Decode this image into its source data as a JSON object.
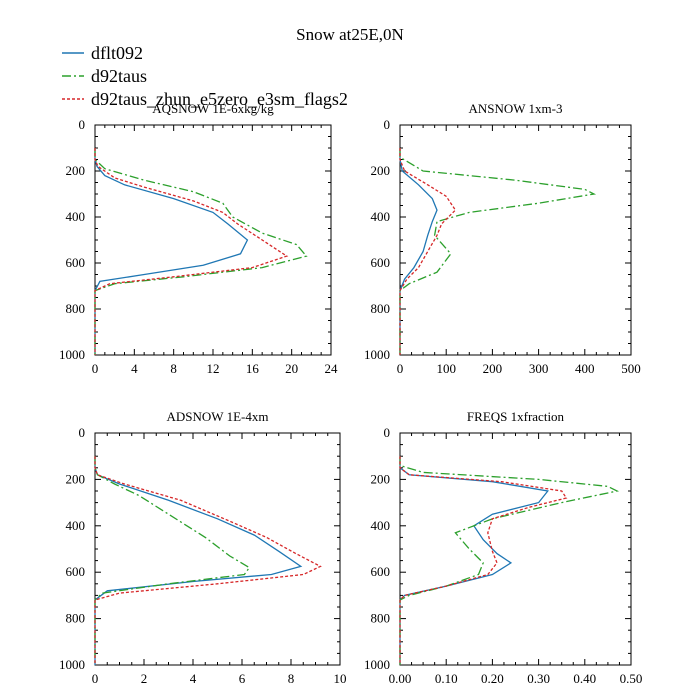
{
  "title": "Snow at25E,0N",
  "legend": [
    {
      "label": "dflt092",
      "color": "#1f77b4",
      "dash": "solid"
    },
    {
      "label": "d92taus",
      "color": "#2ca02c",
      "dash": "dashdot"
    },
    {
      "label": "d92taus_zhun_e5zero_e3sm_flags2",
      "color": "#d62728",
      "dash": "dotted"
    }
  ],
  "chart_data": [
    {
      "type": "line",
      "title": "AQSNOW  1E-6xkg/kg",
      "xlim": [
        0,
        24
      ],
      "xticks": [
        0,
        4,
        8,
        12,
        16,
        20,
        24
      ],
      "xtick_labels": [
        "0",
        "4",
        "8",
        "12",
        "16",
        "20",
        "24"
      ],
      "ylim": [
        1000,
        0
      ],
      "yticks": [
        0,
        200,
        400,
        600,
        800,
        1000
      ],
      "ytick_labels": [
        "0",
        "200",
        "400",
        "600",
        "800",
        "1000"
      ],
      "series": [
        {
          "name": "dflt092",
          "points": [
            [
              0,
              100
            ],
            [
              0,
              150
            ],
            [
              0.2,
              180
            ],
            [
              1,
              220
            ],
            [
              3,
              260
            ],
            [
              8,
              320
            ],
            [
              12,
              380
            ],
            [
              13.5,
              430
            ],
            [
              15.5,
              500
            ],
            [
              14.8,
              560
            ],
            [
              11,
              610
            ],
            [
              5,
              650
            ],
            [
              0.5,
              680
            ],
            [
              0,
              720
            ],
            [
              0,
              1000
            ]
          ]
        },
        {
          "name": "d92taus",
          "points": [
            [
              0,
              100
            ],
            [
              0,
              150
            ],
            [
              1,
              190
            ],
            [
              5,
              240
            ],
            [
              10,
              290
            ],
            [
              13,
              340
            ],
            [
              14,
              400
            ],
            [
              17,
              470
            ],
            [
              20.5,
              520
            ],
            [
              21.5,
              570
            ],
            [
              17,
              620
            ],
            [
              9,
              660
            ],
            [
              2,
              690
            ],
            [
              0,
              720
            ],
            [
              0,
              1000
            ]
          ]
        },
        {
          "name": "d92taus_zhun_e5zero_e3sm_flags2",
          "points": [
            [
              0,
              100
            ],
            [
              0,
              150
            ],
            [
              0.3,
              180
            ],
            [
              2,
              230
            ],
            [
              5,
              270
            ],
            [
              10,
              330
            ],
            [
              13,
              380
            ],
            [
              14.5,
              430
            ],
            [
              17,
              500
            ],
            [
              19.5,
              570
            ],
            [
              16,
              620
            ],
            [
              8,
              660
            ],
            [
              1.5,
              690
            ],
            [
              0,
              720
            ],
            [
              0,
              1000
            ]
          ]
        }
      ]
    },
    {
      "type": "line",
      "title": "ANSNOW  1xm-3",
      "xlim": [
        0,
        500
      ],
      "xticks": [
        0,
        100,
        200,
        300,
        400,
        500
      ],
      "xtick_labels": [
        "0",
        "100",
        "200",
        "300",
        "400",
        "500"
      ],
      "ylim": [
        1000,
        0
      ],
      "yticks": [
        0,
        200,
        400,
        600,
        800,
        1000
      ],
      "ytick_labels": [
        "0",
        "200",
        "400",
        "600",
        "800",
        "1000"
      ],
      "series": [
        {
          "name": "dflt092",
          "points": [
            [
              0,
              100
            ],
            [
              0,
              150
            ],
            [
              5,
              200
            ],
            [
              40,
              260
            ],
            [
              70,
              320
            ],
            [
              80,
              370
            ],
            [
              70,
              420
            ],
            [
              60,
              480
            ],
            [
              50,
              550
            ],
            [
              30,
              620
            ],
            [
              10,
              670
            ],
            [
              0,
              720
            ],
            [
              0,
              1000
            ]
          ]
        },
        {
          "name": "d92taus",
          "points": [
            [
              0,
              100
            ],
            [
              0,
              140
            ],
            [
              50,
              200
            ],
            [
              250,
              240
            ],
            [
              400,
              280
            ],
            [
              420,
              300
            ],
            [
              300,
              340
            ],
            [
              150,
              380
            ],
            [
              80,
              420
            ],
            [
              75,
              480
            ],
            [
              110,
              560
            ],
            [
              80,
              640
            ],
            [
              20,
              690
            ],
            [
              0,
              720
            ],
            [
              0,
              1000
            ]
          ]
        },
        {
          "name": "d92taus_zhun_e5zero_e3sm_flags2",
          "points": [
            [
              0,
              100
            ],
            [
              0,
              150
            ],
            [
              10,
              200
            ],
            [
              60,
              260
            ],
            [
              100,
              310
            ],
            [
              120,
              370
            ],
            [
              90,
              430
            ],
            [
              80,
              480
            ],
            [
              60,
              550
            ],
            [
              40,
              620
            ],
            [
              15,
              670
            ],
            [
              0,
              720
            ],
            [
              0,
              1000
            ]
          ]
        }
      ]
    },
    {
      "type": "line",
      "title": "ADSNOW  1E-4xm",
      "xlim": [
        0,
        10
      ],
      "xticks": [
        0,
        2,
        4,
        6,
        8,
        10
      ],
      "xtick_labels": [
        "0",
        "2",
        "4",
        "6",
        "8",
        "10"
      ],
      "ylim": [
        1000,
        0
      ],
      "yticks": [
        0,
        200,
        400,
        600,
        800,
        1000
      ],
      "ytick_labels": [
        "0",
        "200",
        "400",
        "600",
        "800",
        "1000"
      ],
      "series": [
        {
          "name": "dflt092",
          "points": [
            [
              0,
              100
            ],
            [
              0,
              150
            ],
            [
              0.1,
              180
            ],
            [
              1,
              220
            ],
            [
              3,
              290
            ],
            [
              5,
              370
            ],
            [
              6.5,
              440
            ],
            [
              7.5,
              510
            ],
            [
              8.4,
              575
            ],
            [
              7.2,
              610
            ],
            [
              4,
              640
            ],
            [
              0.5,
              680
            ],
            [
              0,
              720
            ],
            [
              0,
              1000
            ]
          ]
        },
        {
          "name": "d92taus",
          "points": [
            [
              0,
              100
            ],
            [
              0,
              150
            ],
            [
              0.1,
              180
            ],
            [
              0.8,
              220
            ],
            [
              1.8,
              270
            ],
            [
              3,
              350
            ],
            [
              4.5,
              450
            ],
            [
              5.5,
              530
            ],
            [
              6.3,
              580
            ],
            [
              6.1,
              610
            ],
            [
              3,
              650
            ],
            [
              0.3,
              690
            ],
            [
              0,
              720
            ],
            [
              0,
              1000
            ]
          ]
        },
        {
          "name": "d92taus_zhun_e5zero_e3sm_flags2",
          "points": [
            [
              0,
              100
            ],
            [
              0,
              150
            ],
            [
              0.1,
              180
            ],
            [
              1.2,
              220
            ],
            [
              3.5,
              290
            ],
            [
              5.5,
              380
            ],
            [
              7,
              450
            ],
            [
              8.2,
              520
            ],
            [
              9.2,
              575
            ],
            [
              8.5,
              610
            ],
            [
              5,
              650
            ],
            [
              1,
              690
            ],
            [
              0,
              720
            ],
            [
              0,
              1000
            ]
          ]
        }
      ]
    },
    {
      "type": "line",
      "title": "FREQS  1xfraction",
      "xlim": [
        0,
        0.5
      ],
      "xticks": [
        0,
        0.1,
        0.2,
        0.3,
        0.4,
        0.5
      ],
      "xtick_labels": [
        "0.00",
        "0.10",
        "0.20",
        "0.30",
        "0.40",
        "0.50"
      ],
      "ylim": [
        1000,
        0
      ],
      "yticks": [
        0,
        200,
        400,
        600,
        800,
        1000
      ],
      "ytick_labels": [
        "0",
        "200",
        "400",
        "600",
        "800",
        "1000"
      ],
      "series": [
        {
          "name": "dflt092",
          "points": [
            [
              0,
              100
            ],
            [
              0,
              150
            ],
            [
              0.02,
              180
            ],
            [
              0.2,
              210
            ],
            [
              0.32,
              250
            ],
            [
              0.3,
              300
            ],
            [
              0.2,
              350
            ],
            [
              0.16,
              400
            ],
            [
              0.18,
              460
            ],
            [
              0.21,
              520
            ],
            [
              0.24,
              560
            ],
            [
              0.2,
              610
            ],
            [
              0.1,
              660
            ],
            [
              0.01,
              700
            ],
            [
              0,
              720
            ],
            [
              0,
              1000
            ]
          ]
        },
        {
          "name": "d92taus",
          "points": [
            [
              0,
              100
            ],
            [
              0,
              140
            ],
            [
              0.05,
              170
            ],
            [
              0.3,
              200
            ],
            [
              0.45,
              230
            ],
            [
              0.47,
              250
            ],
            [
              0.35,
              300
            ],
            [
              0.2,
              370
            ],
            [
              0.12,
              430
            ],
            [
              0.15,
              500
            ],
            [
              0.18,
              560
            ],
            [
              0.17,
              610
            ],
            [
              0.1,
              660
            ],
            [
              0.02,
              700
            ],
            [
              0,
              720
            ],
            [
              0,
              1000
            ]
          ]
        },
        {
          "name": "d92taus_zhun_e5zero_e3sm_flags2",
          "points": [
            [
              0,
              100
            ],
            [
              0,
              150
            ],
            [
              0.02,
              180
            ],
            [
              0.22,
              210
            ],
            [
              0.35,
              250
            ],
            [
              0.36,
              280
            ],
            [
              0.28,
              320
            ],
            [
              0.2,
              370
            ],
            [
              0.19,
              430
            ],
            [
              0.2,
              510
            ],
            [
              0.21,
              560
            ],
            [
              0.19,
              610
            ],
            [
              0.1,
              660
            ],
            [
              0.01,
              700
            ],
            [
              0,
              720
            ],
            [
              0,
              1000
            ]
          ]
        }
      ]
    }
  ]
}
